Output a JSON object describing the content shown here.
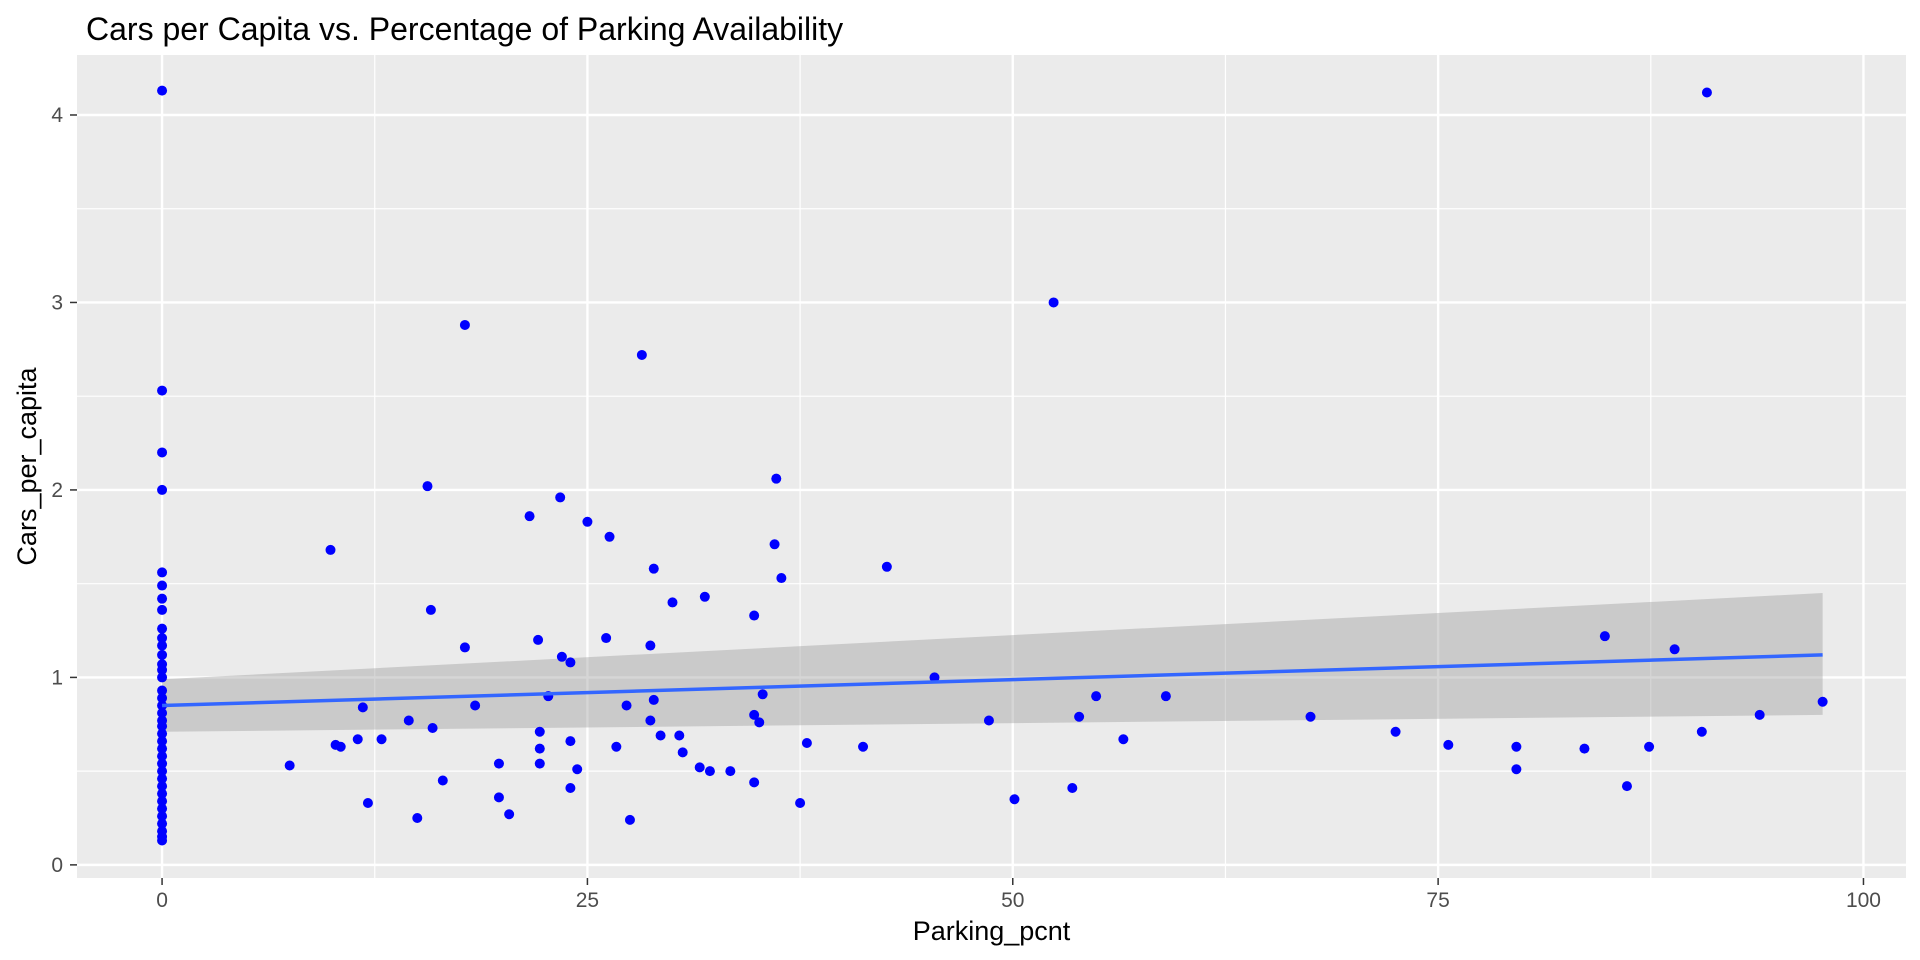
{
  "chart_data": {
    "type": "scatter",
    "title": "Cars per Capita vs. Percentage of Parking Availability",
    "xlabel": "Parking_pcnt",
    "ylabel": "Cars_per_capita",
    "xlim": [
      -5,
      102.5
    ],
    "ylim": [
      -0.07,
      4.32
    ],
    "x_ticks": [
      0,
      25,
      50,
      75,
      100
    ],
    "y_ticks": [
      0,
      1,
      2,
      3,
      4
    ],
    "x_minor_ticks": [
      12.5,
      37.5,
      62.5,
      87.5
    ],
    "y_minor_ticks": [
      0.5,
      1.5,
      2.5,
      3.5
    ],
    "grid": true,
    "colors": {
      "panel": "#ebebeb",
      "grid": "#ffffff",
      "points": "#0000ff",
      "smooth_line": "#3366ff",
      "confidence_band": "#999999"
    },
    "points": [
      {
        "x": 0,
        "y": 4.13
      },
      {
        "x": 0,
        "y": 2.53
      },
      {
        "x": 0,
        "y": 2.2
      },
      {
        "x": 0,
        "y": 2.0
      },
      {
        "x": 0,
        "y": 1.56
      },
      {
        "x": 0,
        "y": 1.49
      },
      {
        "x": 0,
        "y": 1.42
      },
      {
        "x": 0,
        "y": 1.36
      },
      {
        "x": 0,
        "y": 1.26
      },
      {
        "x": 0,
        "y": 1.21
      },
      {
        "x": 0,
        "y": 1.17
      },
      {
        "x": 0,
        "y": 1.12
      },
      {
        "x": 0,
        "y": 1.07
      },
      {
        "x": 0,
        "y": 1.04
      },
      {
        "x": 0,
        "y": 1.0
      },
      {
        "x": 0,
        "y": 0.93
      },
      {
        "x": 0,
        "y": 0.89
      },
      {
        "x": 0,
        "y": 0.85
      },
      {
        "x": 0,
        "y": 0.81
      },
      {
        "x": 0,
        "y": 0.77
      },
      {
        "x": 0,
        "y": 0.74
      },
      {
        "x": 0,
        "y": 0.7
      },
      {
        "x": 0,
        "y": 0.66
      },
      {
        "x": 0,
        "y": 0.62
      },
      {
        "x": 0,
        "y": 0.58
      },
      {
        "x": 0,
        "y": 0.54
      },
      {
        "x": 0,
        "y": 0.5
      },
      {
        "x": 0,
        "y": 0.46
      },
      {
        "x": 0,
        "y": 0.42
      },
      {
        "x": 0,
        "y": 0.38
      },
      {
        "x": 0,
        "y": 0.34
      },
      {
        "x": 0,
        "y": 0.3
      },
      {
        "x": 0,
        "y": 0.26
      },
      {
        "x": 0,
        "y": 0.22
      },
      {
        "x": 0,
        "y": 0.18
      },
      {
        "x": 0,
        "y": 0.15
      },
      {
        "x": 0,
        "y": 0.13
      },
      {
        "x": 7.5,
        "y": 0.53
      },
      {
        "x": 9.9,
        "y": 1.68
      },
      {
        "x": 10.2,
        "y": 0.64
      },
      {
        "x": 10.5,
        "y": 0.63
      },
      {
        "x": 11.5,
        "y": 0.67
      },
      {
        "x": 11.8,
        "y": 0.84
      },
      {
        "x": 12.1,
        "y": 0.33
      },
      {
        "x": 12.9,
        "y": 0.67
      },
      {
        "x": 14.5,
        "y": 0.77
      },
      {
        "x": 15.0,
        "y": 0.25
      },
      {
        "x": 15.6,
        "y": 2.02
      },
      {
        "x": 15.8,
        "y": 1.36
      },
      {
        "x": 15.9,
        "y": 0.73
      },
      {
        "x": 16.5,
        "y": 0.45
      },
      {
        "x": 17.8,
        "y": 2.88
      },
      {
        "x": 17.8,
        "y": 1.16
      },
      {
        "x": 18.4,
        "y": 0.85
      },
      {
        "x": 19.8,
        "y": 0.54
      },
      {
        "x": 19.8,
        "y": 0.36
      },
      {
        "x": 20.4,
        "y": 0.27
      },
      {
        "x": 21.6,
        "y": 1.86
      },
      {
        "x": 22.1,
        "y": 1.2
      },
      {
        "x": 22.2,
        "y": 0.71
      },
      {
        "x": 22.2,
        "y": 0.62
      },
      {
        "x": 22.2,
        "y": 0.54
      },
      {
        "x": 22.7,
        "y": 0.9
      },
      {
        "x": 23.4,
        "y": 1.96
      },
      {
        "x": 23.5,
        "y": 1.11
      },
      {
        "x": 24.0,
        "y": 1.08
      },
      {
        "x": 24.0,
        "y": 0.66
      },
      {
        "x": 24.0,
        "y": 0.41
      },
      {
        "x": 24.4,
        "y": 0.51
      },
      {
        "x": 25.0,
        "y": 1.83
      },
      {
        "x": 26.1,
        "y": 1.21
      },
      {
        "x": 26.3,
        "y": 1.75
      },
      {
        "x": 26.7,
        "y": 0.63
      },
      {
        "x": 27.3,
        "y": 0.85
      },
      {
        "x": 27.5,
        "y": 0.24
      },
      {
        "x": 28.2,
        "y": 2.72
      },
      {
        "x": 28.7,
        "y": 1.17
      },
      {
        "x": 28.7,
        "y": 0.77
      },
      {
        "x": 28.9,
        "y": 1.58
      },
      {
        "x": 28.9,
        "y": 0.88
      },
      {
        "x": 29.3,
        "y": 0.69
      },
      {
        "x": 30.0,
        "y": 1.4
      },
      {
        "x": 30.4,
        "y": 0.69
      },
      {
        "x": 30.6,
        "y": 0.6
      },
      {
        "x": 31.6,
        "y": 0.52
      },
      {
        "x": 31.9,
        "y": 1.43
      },
      {
        "x": 32.2,
        "y": 0.5
      },
      {
        "x": 33.4,
        "y": 0.5
      },
      {
        "x": 34.8,
        "y": 1.33
      },
      {
        "x": 34.8,
        "y": 0.8
      },
      {
        "x": 34.8,
        "y": 0.44
      },
      {
        "x": 35.1,
        "y": 0.76
      },
      {
        "x": 35.3,
        "y": 0.91
      },
      {
        "x": 36.0,
        "y": 1.71
      },
      {
        "x": 36.1,
        "y": 2.06
      },
      {
        "x": 36.4,
        "y": 1.53
      },
      {
        "x": 37.5,
        "y": 0.33
      },
      {
        "x": 37.9,
        "y": 0.65
      },
      {
        "x": 41.2,
        "y": 0.63
      },
      {
        "x": 42.6,
        "y": 1.59
      },
      {
        "x": 45.4,
        "y": 1.0
      },
      {
        "x": 48.6,
        "y": 0.77
      },
      {
        "x": 50.1,
        "y": 0.35
      },
      {
        "x": 52.4,
        "y": 3.0
      },
      {
        "x": 53.5,
        "y": 0.41
      },
      {
        "x": 53.9,
        "y": 0.79
      },
      {
        "x": 54.9,
        "y": 0.9
      },
      {
        "x": 56.5,
        "y": 0.67
      },
      {
        "x": 59.0,
        "y": 0.9
      },
      {
        "x": 67.5,
        "y": 0.79
      },
      {
        "x": 72.5,
        "y": 0.71
      },
      {
        "x": 75.6,
        "y": 0.64
      },
      {
        "x": 79.6,
        "y": 0.63
      },
      {
        "x": 79.6,
        "y": 0.51
      },
      {
        "x": 83.6,
        "y": 0.62
      },
      {
        "x": 84.8,
        "y": 1.22
      },
      {
        "x": 86.1,
        "y": 0.42
      },
      {
        "x": 87.4,
        "y": 0.63
      },
      {
        "x": 88.9,
        "y": 1.15
      },
      {
        "x": 90.5,
        "y": 0.71
      },
      {
        "x": 90.8,
        "y": 4.12
      },
      {
        "x": 93.9,
        "y": 0.8
      },
      {
        "x": 97.6,
        "y": 0.87
      }
    ],
    "smooth": {
      "method": "lm",
      "x": [
        0,
        97.6
      ],
      "y": [
        0.85,
        1.12
      ],
      "lower": [
        0.71,
        0.8
      ],
      "upper": [
        0.99,
        1.45
      ]
    }
  }
}
